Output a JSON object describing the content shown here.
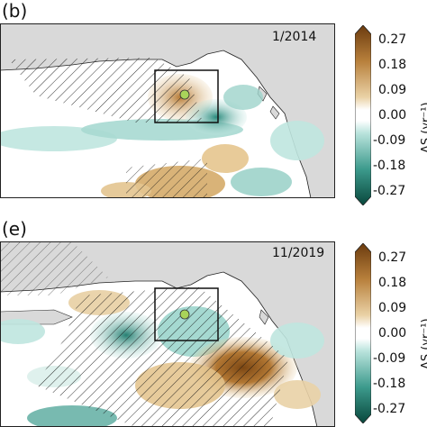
{
  "panels": [
    {
      "letter": "(b)",
      "date": "1/2014",
      "colorbar": {
        "ticks": [
          "0.27",
          "0.18",
          "0.09",
          "0.00",
          "-0.09",
          "-0.18",
          "-0.27"
        ],
        "unit_text": "ΔS (yr⁻¹)"
      }
    },
    {
      "letter": "(e)",
      "date": "11/2019",
      "colorbar": {
        "ticks": [
          "0.27",
          "0.18",
          "0.09",
          "0.00",
          "-0.09",
          "-0.18",
          "-0.27"
        ],
        "unit_text": "ΔS (yr⁻¹)"
      }
    }
  ],
  "colors": {
    "land": "#d9d9d9",
    "ocean": "#ffffff",
    "positive": "#a0672a",
    "negative": "#1f7d70",
    "marker": "#a9d45a"
  }
}
